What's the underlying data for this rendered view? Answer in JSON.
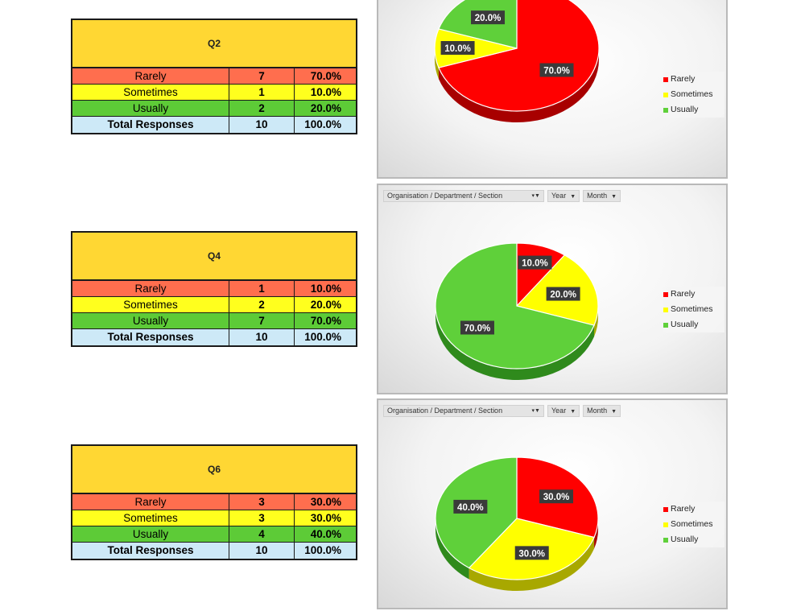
{
  "filters": {
    "org": "Organisation / Department / Section",
    "year": "Year",
    "month": "Month"
  },
  "colors": {
    "rarely": "#ff0000",
    "sometimes": "#ffff00",
    "usually": "#5fd03a",
    "label_bg": "#3a3a3a",
    "label_fg": "#ffffff"
  },
  "tables": [
    {
      "title": "Q2",
      "rows": [
        {
          "label": "Rarely",
          "count": "7",
          "pct": "70.0%"
        },
        {
          "label": "Sometimes",
          "count": "1",
          "pct": "10.0%"
        },
        {
          "label": "Usually",
          "count": "2",
          "pct": "20.0%"
        }
      ],
      "total": {
        "label": "Total Responses",
        "count": "10",
        "pct": "100.0%"
      }
    },
    {
      "title": "Q4",
      "rows": [
        {
          "label": "Rarely",
          "count": "1",
          "pct": "10.0%"
        },
        {
          "label": "Sometimes",
          "count": "2",
          "pct": "20.0%"
        },
        {
          "label": "Usually",
          "count": "7",
          "pct": "70.0%"
        }
      ],
      "total": {
        "label": "Total Responses",
        "count": "10",
        "pct": "100.0%"
      }
    },
    {
      "title": "Q6",
      "rows": [
        {
          "label": "Rarely",
          "count": "3",
          "pct": "30.0%"
        },
        {
          "label": "Sometimes",
          "count": "3",
          "pct": "30.0%"
        },
        {
          "label": "Usually",
          "count": "4",
          "pct": "40.0%"
        }
      ],
      "total": {
        "label": "Total Responses",
        "count": "10",
        "pct": "100.0%"
      }
    }
  ],
  "chart_data": [
    {
      "type": "pie",
      "categories": [
        "Rarely",
        "Sometimes",
        "Usually"
      ],
      "values": [
        70.0,
        10.0,
        20.0
      ],
      "labels": [
        "70.0%",
        "10.0%",
        "20.0%"
      ],
      "legend": [
        "Rarely",
        "Sometimes",
        "Usually"
      ],
      "legend_position": "right"
    },
    {
      "type": "pie",
      "categories": [
        "Rarely",
        "Sometimes",
        "Usually"
      ],
      "values": [
        10.0,
        20.0,
        70.0
      ],
      "labels": [
        "10.0%",
        "20.0%",
        "70.0%"
      ],
      "legend": [
        "Rarely",
        "Sometimes",
        "Usually"
      ],
      "legend_position": "right"
    },
    {
      "type": "pie",
      "categories": [
        "Rarely",
        "Sometimes",
        "Usually"
      ],
      "values": [
        30.0,
        30.0,
        40.0
      ],
      "labels": [
        "30.0%",
        "30.0%",
        "40.0%"
      ],
      "legend": [
        "Rarely",
        "Sometimes",
        "Usually"
      ],
      "legend_position": "right"
    }
  ]
}
